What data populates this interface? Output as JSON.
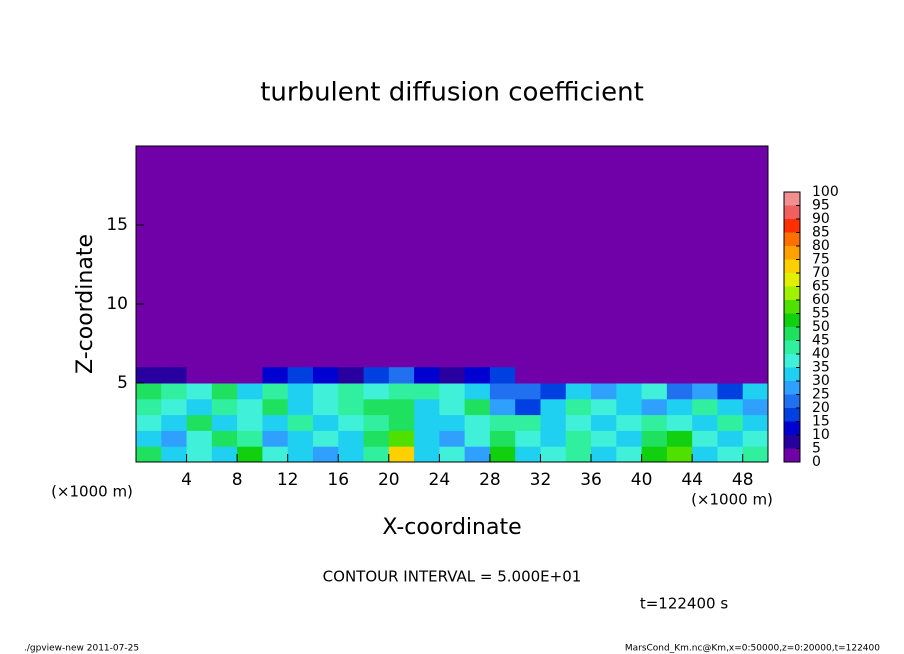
{
  "chart_data": {
    "type": "heatmap",
    "title": "turbulent diffusion coefficient",
    "x_label": "X-coordinate",
    "y_label": "Z-coordinate",
    "x_unit": "(×1000 m)",
    "y_unit": "(×1000 m)",
    "xlim": [
      0,
      50
    ],
    "ylim": [
      0,
      20
    ],
    "xticks": [
      4,
      8,
      12,
      16,
      20,
      24,
      28,
      32,
      36,
      40,
      44,
      48
    ],
    "yticks": [
      5,
      10,
      15
    ],
    "x": [
      1,
      3,
      5,
      7,
      9,
      11,
      13,
      15,
      17,
      19,
      21,
      23,
      25,
      27,
      29,
      31,
      33,
      35,
      37,
      39,
      41,
      43,
      45,
      47,
      49
    ],
    "y": [
      0.5,
      1.5,
      2.5,
      3.5,
      4.5,
      5.5
    ],
    "z": [
      [
        45,
        30,
        35,
        30,
        50,
        35,
        30,
        25,
        30,
        40,
        70,
        30,
        35,
        25,
        50,
        30,
        35,
        40,
        30,
        35,
        50,
        55,
        30,
        35,
        40
      ],
      [
        30,
        25,
        35,
        45,
        40,
        25,
        30,
        35,
        30,
        45,
        55,
        30,
        25,
        35,
        45,
        35,
        30,
        40,
        35,
        30,
        45,
        50,
        35,
        30,
        35
      ],
      [
        35,
        30,
        45,
        30,
        35,
        30,
        40,
        30,
        35,
        40,
        45,
        30,
        30,
        35,
        40,
        40,
        30,
        35,
        30,
        35,
        40,
        35,
        30,
        40,
        30
      ],
      [
        40,
        35,
        30,
        40,
        35,
        45,
        30,
        35,
        40,
        45,
        45,
        30,
        35,
        45,
        25,
        15,
        30,
        40,
        35,
        30,
        25,
        30,
        40,
        30,
        25
      ],
      [
        45,
        40,
        35,
        45,
        30,
        40,
        30,
        35,
        40,
        35,
        40,
        40,
        35,
        30,
        20,
        20,
        15,
        30,
        25,
        30,
        35,
        20,
        25,
        15,
        30
      ],
      [
        5,
        5,
        0,
        0,
        0,
        10,
        15,
        10,
        5,
        15,
        20,
        10,
        5,
        10,
        15,
        0,
        0,
        0,
        0,
        0,
        0,
        0,
        0,
        0,
        0
      ]
    ],
    "colorbar": {
      "levels": [
        0,
        5,
        10,
        15,
        20,
        25,
        30,
        35,
        40,
        45,
        50,
        55,
        60,
        65,
        70,
        75,
        80,
        85,
        90,
        95,
        100
      ],
      "colors": [
        "#7000a8",
        "#2800a0",
        "#0000d0",
        "#0040e0",
        "#2070f0",
        "#30a0ff",
        "#20d0f0",
        "#40f0d8",
        "#30f0a0",
        "#20e060",
        "#10d010",
        "#50e000",
        "#a0f000",
        "#e0f000",
        "#ffd000",
        "#ffa000",
        "#ff7000",
        "#ff3000",
        "#f06060",
        "#f09090"
      ]
    },
    "contour_note": "CONTOUR INTERVAL = 5.000E+01",
    "time_note": "t=122400 s",
    "footer_left": "./gpview-new  2011-07-25",
    "footer_right": "MarsCond_Km.nc@Km,x=0:50000,z=0:20000,t=122400"
  }
}
